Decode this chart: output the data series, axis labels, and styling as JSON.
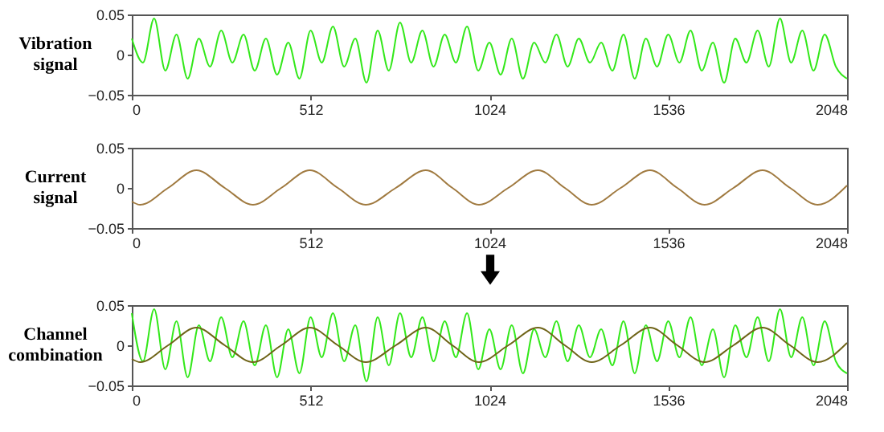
{
  "chart_data": [
    {
      "type": "line",
      "ylabel": "Vibration signal",
      "xlim": [
        0,
        2048
      ],
      "xticks": [
        0,
        512,
        1024,
        1536,
        2048
      ],
      "ylim": [
        -0.05,
        0.05
      ],
      "yticks": [
        -0.05,
        0,
        0.05
      ],
      "grid": false,
      "legend": false,
      "x": [
        0,
        32,
        64,
        96,
        128,
        160,
        192,
        224,
        256,
        288,
        320,
        352,
        384,
        416,
        448,
        480,
        512,
        544,
        576,
        608,
        640,
        672,
        704,
        736,
        768,
        800,
        832,
        864,
        896,
        928,
        960,
        992,
        1024,
        1056,
        1088,
        1120,
        1152,
        1184,
        1216,
        1248,
        1280,
        1312,
        1344,
        1376,
        1408,
        1440,
        1472,
        1504,
        1536,
        1568,
        1600,
        1632,
        1664,
        1696,
        1728,
        1760,
        1792,
        1824,
        1856,
        1888,
        1920,
        1952,
        1984,
        2016,
        2048
      ],
      "series": [
        {
          "color": "#33e81a",
          "values": [
            0.02,
            -0.01,
            0.045,
            -0.02,
            0.025,
            -0.03,
            0.02,
            -0.015,
            0.03,
            -0.01,
            0.025,
            -0.02,
            0.02,
            -0.025,
            0.015,
            -0.03,
            0.03,
            -0.01,
            0.035,
            -0.015,
            0.02,
            -0.035,
            0.03,
            -0.02,
            0.04,
            -0.01,
            0.03,
            -0.015,
            0.025,
            -0.01,
            0.035,
            -0.02,
            0.015,
            -0.025,
            0.02,
            -0.03,
            0.015,
            -0.01,
            0.025,
            -0.015,
            0.02,
            -0.01,
            0.015,
            -0.02,
            0.025,
            -0.03,
            0.02,
            -0.015,
            0.025,
            -0.01,
            0.03,
            -0.02,
            0.015,
            -0.035,
            0.02,
            -0.01,
            0.03,
            -0.015,
            0.045,
            -0.01,
            0.03,
            -0.02,
            0.025,
            -0.015,
            -0.03
          ]
        }
      ]
    },
    {
      "type": "line",
      "ylabel": "Current signal",
      "xlim": [
        0,
        2048
      ],
      "xticks": [
        0,
        512,
        1024,
        1536,
        2048
      ],
      "ylim": [
        -0.05,
        0.05
      ],
      "yticks": [
        -0.05,
        0,
        0.05
      ],
      "grid": false,
      "legend": false,
      "series": [
        {
          "color": "#a07a40",
          "x": [
            0,
            24,
            104,
            185,
            266,
            347,
            428,
            510,
            590,
            670,
            756,
            842,
            918,
            994,
            1078,
            1163,
            1240,
            1317,
            1400,
            1484,
            1562,
            1640,
            1723,
            1806,
            1885,
            1964,
            2048
          ],
          "values": [
            -0.017,
            -0.021,
            0,
            0.022,
            0,
            -0.021,
            0,
            0.022,
            0,
            -0.021,
            0,
            0.022,
            0,
            -0.021,
            0,
            0.022,
            0,
            -0.021,
            0,
            0.022,
            0,
            -0.021,
            0,
            0.022,
            0,
            -0.021,
            0.003
          ]
        }
      ]
    },
    {
      "type": "line",
      "ylabel": "Channel combination",
      "xlim": [
        0,
        2048
      ],
      "xticks": [
        0,
        512,
        1024,
        1536,
        2048
      ],
      "ylim": [
        -0.05,
        0.05
      ],
      "yticks": [
        -0.05,
        0,
        0.05
      ],
      "grid": false,
      "legend": false,
      "x": [
        0,
        32,
        64,
        96,
        128,
        160,
        192,
        224,
        256,
        288,
        320,
        352,
        384,
        416,
        448,
        480,
        512,
        544,
        576,
        608,
        640,
        672,
        704,
        736,
        768,
        800,
        832,
        864,
        896,
        928,
        960,
        992,
        1024,
        1056,
        1088,
        1120,
        1152,
        1184,
        1216,
        1248,
        1280,
        1312,
        1344,
        1376,
        1408,
        1440,
        1472,
        1504,
        1536,
        1568,
        1600,
        1632,
        1664,
        1696,
        1728,
        1760,
        1792,
        1824,
        1856,
        1888,
        1920,
        1952,
        1984,
        2016,
        2048
      ],
      "series": [
        {
          "color": "#33e81a",
          "values": [
            0.04,
            -0.02,
            0.045,
            -0.03,
            0.03,
            -0.04,
            0.025,
            -0.02,
            0.035,
            -0.015,
            0.03,
            -0.025,
            0.025,
            -0.04,
            0.02,
            -0.035,
            0.035,
            -0.015,
            0.04,
            -0.02,
            0.025,
            -0.045,
            0.035,
            -0.025,
            0.04,
            -0.015,
            0.035,
            -0.02,
            0.03,
            -0.015,
            0.04,
            -0.03,
            0.02,
            -0.03,
            0.025,
            -0.035,
            0.02,
            -0.015,
            0.03,
            -0.02,
            0.025,
            -0.015,
            0.02,
            -0.025,
            0.03,
            -0.035,
            0.025,
            -0.02,
            0.03,
            -0.015,
            0.035,
            -0.025,
            0.02,
            -0.04,
            0.025,
            -0.015,
            0.035,
            -0.02,
            0.045,
            -0.015,
            0.035,
            -0.025,
            0.03,
            -0.02,
            -0.035
          ]
        },
        {
          "color": "#6f6418",
          "x": [
            0,
            24,
            104,
            185,
            266,
            347,
            428,
            510,
            590,
            670,
            756,
            842,
            918,
            994,
            1078,
            1163,
            1240,
            1317,
            1400,
            1484,
            1562,
            1640,
            1723,
            1806,
            1885,
            1964,
            2048
          ],
          "values": [
            -0.017,
            -0.021,
            0,
            0.022,
            0,
            -0.021,
            0,
            0.022,
            0,
            -0.021,
            0,
            0.022,
            0,
            -0.021,
            0,
            0.022,
            0,
            -0.021,
            0,
            0.022,
            0,
            -0.021,
            0,
            0.022,
            0,
            -0.021,
            0.003
          ]
        }
      ]
    }
  ]
}
